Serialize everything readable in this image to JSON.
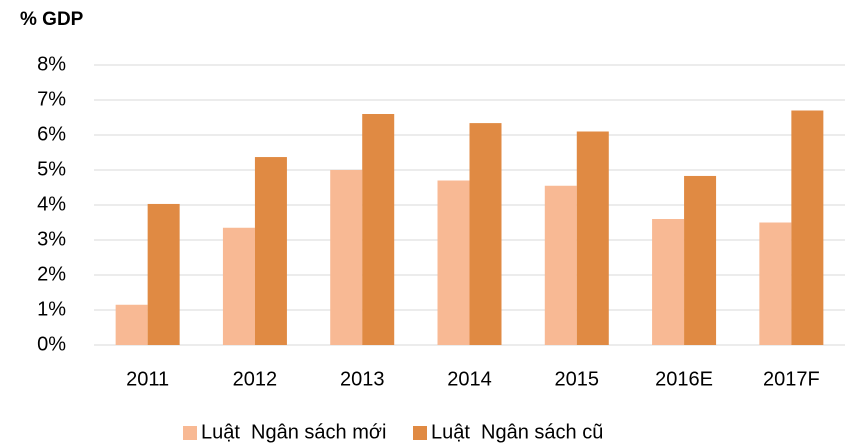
{
  "chart_data": {
    "type": "bar",
    "title": "% GDP",
    "categories": [
      "2011",
      "2012",
      "2013",
      "2014",
      "2015",
      "2016E",
      "2017F"
    ],
    "series": [
      {
        "name": "Luật  Ngân sách mới",
        "color": "#f8b994",
        "values": [
          1.15,
          3.35,
          5.0,
          4.7,
          4.55,
          3.6,
          3.5
        ]
      },
      {
        "name": "Luật  Ngân sách cũ",
        "color": "#e08a43",
        "values": [
          4.03,
          5.37,
          6.6,
          6.34,
          6.1,
          4.83,
          6.7
        ]
      }
    ],
    "ylim": [
      0,
      8
    ],
    "yticks": [
      {
        "value": 0,
        "label": "0%"
      },
      {
        "value": 1,
        "label": "1%"
      },
      {
        "value": 2,
        "label": "2%"
      },
      {
        "value": 3,
        "label": "3%"
      },
      {
        "value": 4,
        "label": "4%"
      },
      {
        "value": 5,
        "label": "5%"
      },
      {
        "value": 6,
        "label": "6%"
      },
      {
        "value": 7,
        "label": "7%"
      },
      {
        "value": 8,
        "label": "8%"
      }
    ],
    "grid": true,
    "legend": "bottom"
  }
}
